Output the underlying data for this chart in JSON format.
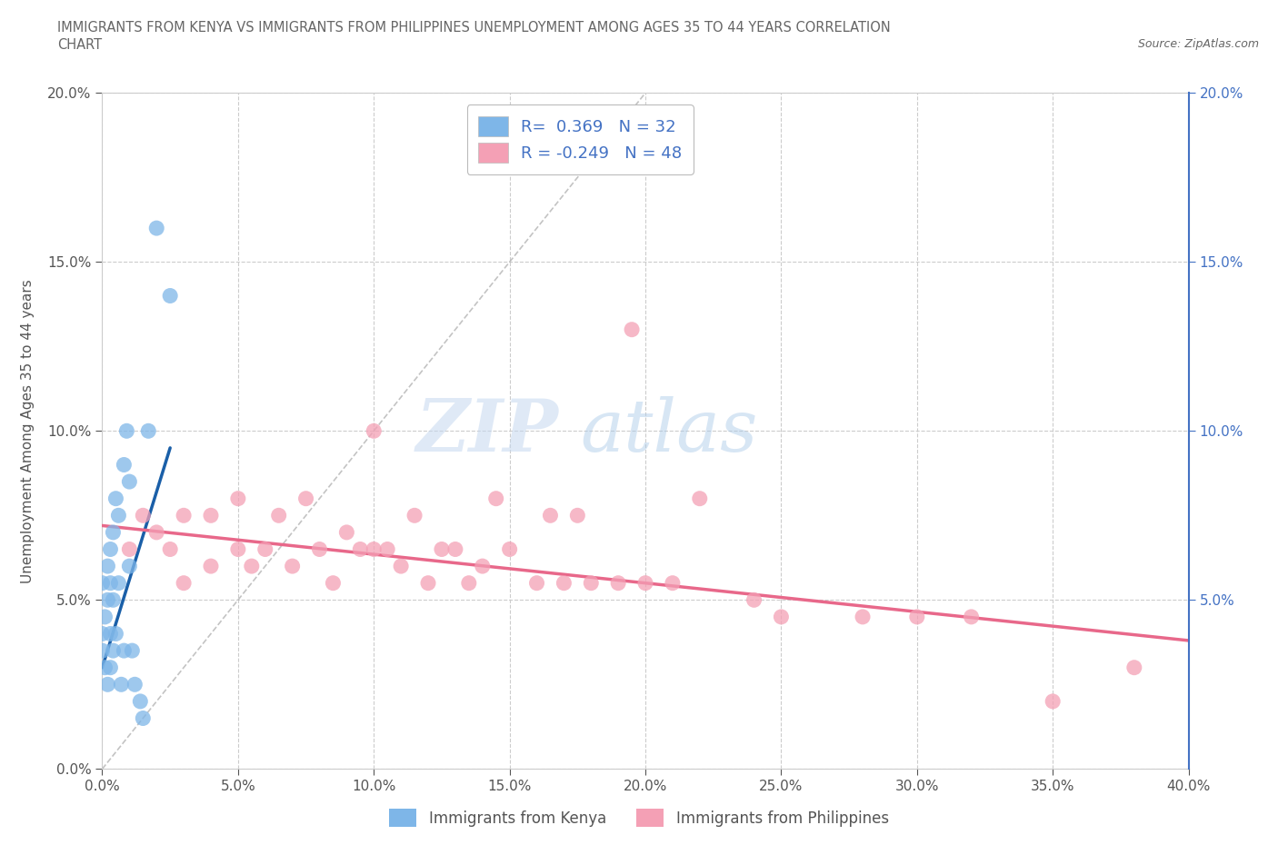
{
  "title_line1": "IMMIGRANTS FROM KENYA VS IMMIGRANTS FROM PHILIPPINES UNEMPLOYMENT AMONG AGES 35 TO 44 YEARS CORRELATION",
  "title_line2": "CHART",
  "source_text": "Source: ZipAtlas.com",
  "ylabel": "Unemployment Among Ages 35 to 44 years",
  "xlim": [
    0.0,
    0.4
  ],
  "ylim": [
    0.0,
    0.2
  ],
  "xticks": [
    0.0,
    0.05,
    0.1,
    0.15,
    0.2,
    0.25,
    0.3,
    0.35,
    0.4
  ],
  "yticks_left": [
    0.0,
    0.05,
    0.1,
    0.15,
    0.2
  ],
  "yticks_right": [
    0.05,
    0.1,
    0.15,
    0.2
  ],
  "kenya_R": 0.369,
  "kenya_N": 32,
  "philippines_R": -0.249,
  "philippines_N": 48,
  "kenya_color": "#7EB6E8",
  "kenya_line_color": "#1A5FA8",
  "philippines_color": "#F4A0B5",
  "philippines_line_color": "#E8688A",
  "kenya_scatter_x": [
    0.0,
    0.0,
    0.0,
    0.001,
    0.001,
    0.002,
    0.002,
    0.002,
    0.003,
    0.003,
    0.003,
    0.003,
    0.004,
    0.004,
    0.004,
    0.005,
    0.005,
    0.006,
    0.006,
    0.007,
    0.008,
    0.008,
    0.009,
    0.01,
    0.01,
    0.011,
    0.012,
    0.014,
    0.015,
    0.017,
    0.02,
    0.025
  ],
  "kenya_scatter_y": [
    0.035,
    0.04,
    0.055,
    0.03,
    0.045,
    0.025,
    0.05,
    0.06,
    0.03,
    0.04,
    0.055,
    0.065,
    0.035,
    0.05,
    0.07,
    0.04,
    0.08,
    0.055,
    0.075,
    0.025,
    0.035,
    0.09,
    0.1,
    0.06,
    0.085,
    0.035,
    0.025,
    0.02,
    0.015,
    0.1,
    0.16,
    0.14
  ],
  "philippines_scatter_x": [
    0.01,
    0.015,
    0.02,
    0.025,
    0.03,
    0.03,
    0.04,
    0.04,
    0.05,
    0.05,
    0.055,
    0.06,
    0.065,
    0.07,
    0.075,
    0.08,
    0.085,
    0.09,
    0.095,
    0.1,
    0.1,
    0.105,
    0.11,
    0.115,
    0.12,
    0.125,
    0.13,
    0.135,
    0.14,
    0.145,
    0.15,
    0.16,
    0.165,
    0.17,
    0.175,
    0.18,
    0.19,
    0.195,
    0.2,
    0.21,
    0.22,
    0.24,
    0.25,
    0.28,
    0.3,
    0.32,
    0.35,
    0.38
  ],
  "philippines_scatter_y": [
    0.065,
    0.075,
    0.07,
    0.065,
    0.055,
    0.075,
    0.06,
    0.075,
    0.065,
    0.08,
    0.06,
    0.065,
    0.075,
    0.06,
    0.08,
    0.065,
    0.055,
    0.07,
    0.065,
    0.065,
    0.1,
    0.065,
    0.06,
    0.075,
    0.055,
    0.065,
    0.065,
    0.055,
    0.06,
    0.08,
    0.065,
    0.055,
    0.075,
    0.055,
    0.075,
    0.055,
    0.055,
    0.13,
    0.055,
    0.055,
    0.08,
    0.05,
    0.045,
    0.045,
    0.045,
    0.045,
    0.02,
    0.03
  ],
  "kenya_trend_x": [
    0.0,
    0.025
  ],
  "kenya_trend_y": [
    0.03,
    0.095
  ],
  "philippines_trend_x": [
    0.0,
    0.4
  ],
  "philippines_trend_y": [
    0.072,
    0.038
  ],
  "diag_line_x": [
    0.0,
    0.2
  ],
  "diag_line_y": [
    0.0,
    0.2
  ],
  "watermark_zip": "ZIP",
  "watermark_atlas": "atlas",
  "legend_label_kenya": "Immigrants from Kenya",
  "legend_label_philippines": "Immigrants from Philippines",
  "background_color": "#FFFFFF",
  "grid_color": "#CCCCCC",
  "title_color": "#666666",
  "axis_label_color": "#555555",
  "right_axis_color": "#4472C4",
  "tick_color": "#555555"
}
